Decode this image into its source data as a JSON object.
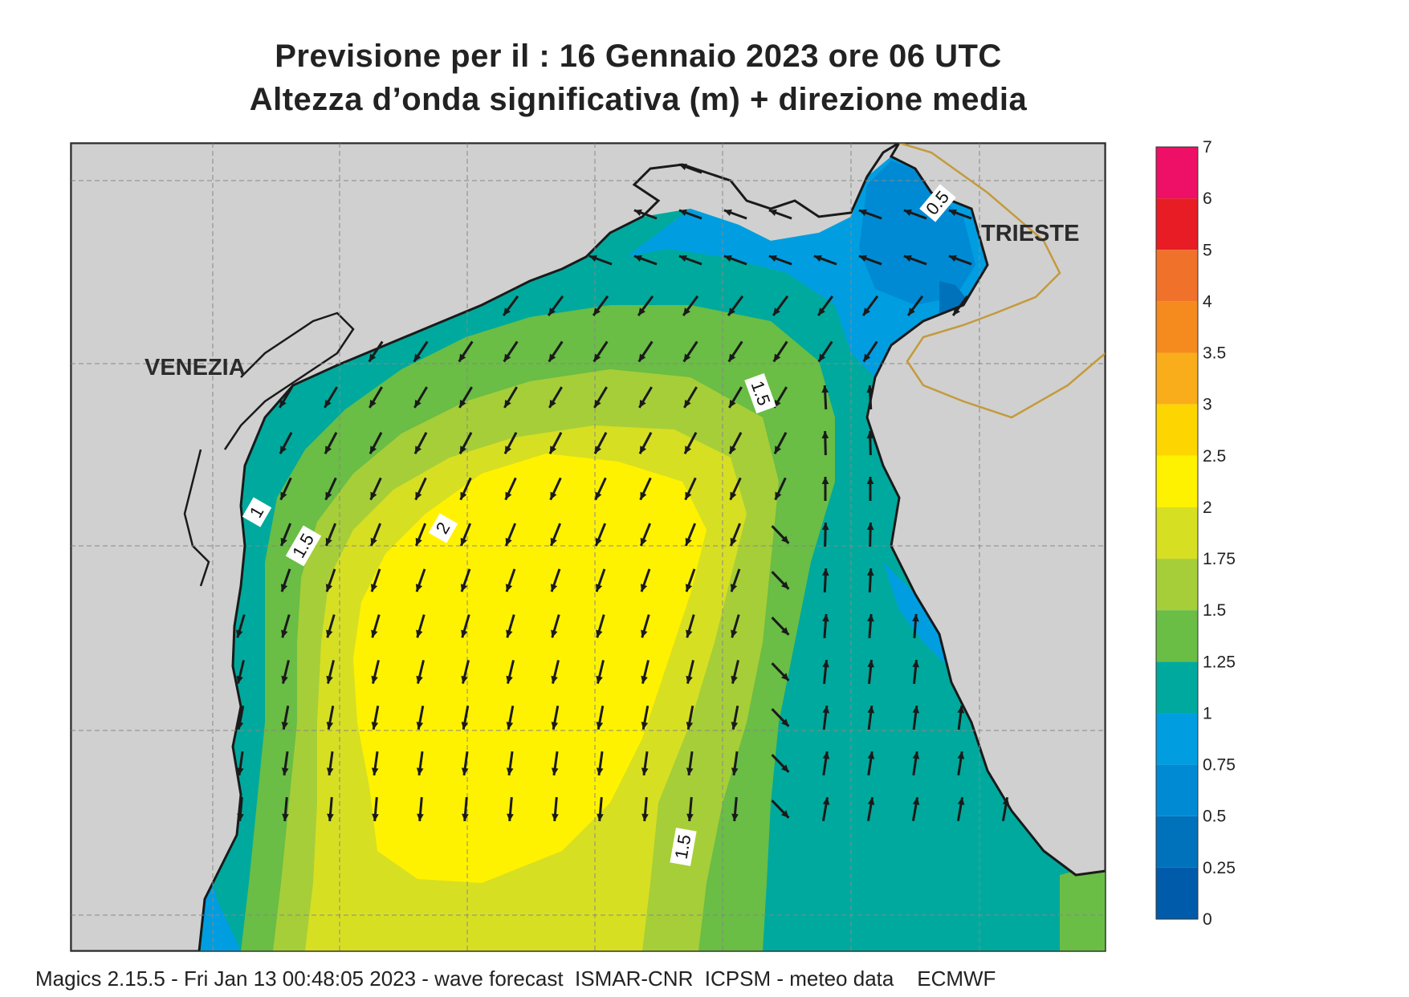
{
  "title": {
    "line1": "Previsione per il  :  16  Gennaio  2023   ore 06 UTC",
    "line2": "Altezza d’onda significativa (m) + direzione media"
  },
  "map": {
    "cities": [
      {
        "name": "VENEZIA"
      },
      {
        "name": "TRIESTE"
      }
    ],
    "contour_labels": [
      "1",
      "1.5",
      "2",
      "1.5",
      "1.5",
      "0.5"
    ],
    "colors": {
      "land": "#d0d0d0",
      "coast": "#1a1a1a",
      "border": "#c49a3c",
      "grid": "#888888",
      "arrow": "#1a1a1a"
    },
    "arrow_field": {
      "rows": 15,
      "cols": 19,
      "direction_description": "south-west in north and centre, south in centre-south, north/north-east along eastern (Istrian) coast"
    }
  },
  "colorbar": {
    "levels": [
      {
        "label": "7",
        "color": ""
      },
      {
        "label": "6",
        "color": "#ee1066"
      },
      {
        "label": "5",
        "color": "#e81c24"
      },
      {
        "label": "4",
        "color": "#f0722a"
      },
      {
        "label": "3.5",
        "color": "#f58b1e"
      },
      {
        "label": "3",
        "color": "#f9ad1a"
      },
      {
        "label": "2.5",
        "color": "#fdd500"
      },
      {
        "label": "2",
        "color": "#fff200"
      },
      {
        "label": "1.75",
        "color": "#d7df23"
      },
      {
        "label": "1.5",
        "color": "#a6ce39"
      },
      {
        "label": "1.25",
        "color": "#6abd45"
      },
      {
        "label": "1",
        "color": "#00a99d"
      },
      {
        "label": "0.75",
        "color": "#009ee0"
      },
      {
        "label": "0.5",
        "color": "#008ad4"
      },
      {
        "label": "0.25",
        "color": "#0072bc"
      },
      {
        "label": "0",
        "color": "#005baa"
      }
    ]
  },
  "footer": "Magics 2.15.5 - Fri Jan 13 00:48:05 2023 - wave forecast  ISMAR-CNR  ICPSM - meteo data    ECMWF"
}
